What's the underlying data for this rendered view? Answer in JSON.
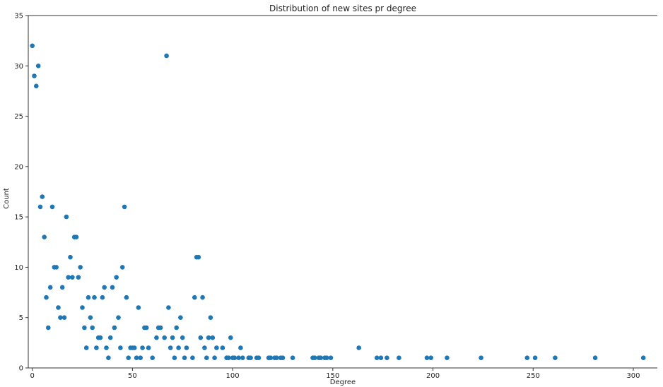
{
  "chart_data": {
    "type": "scatter",
    "title": "Distribution of new sites pr degree",
    "xlabel": "Degree",
    "ylabel": "Count",
    "xlim": [
      -2,
      312
    ],
    "ylim": [
      0,
      35
    ],
    "xticks": [
      0,
      50,
      100,
      150,
      200,
      250,
      300
    ],
    "yticks": [
      0,
      5,
      10,
      15,
      20,
      25,
      30,
      35
    ],
    "grid": false,
    "marker_color": "#1f77b4",
    "series": [
      {
        "points": [
          [
            0,
            32
          ],
          [
            1,
            29
          ],
          [
            2,
            28
          ],
          [
            3,
            30
          ],
          [
            4,
            16
          ],
          [
            5,
            17
          ],
          [
            6,
            13
          ],
          [
            7,
            7
          ],
          [
            8,
            4
          ],
          [
            9,
            8
          ],
          [
            10,
            16
          ],
          [
            11,
            10
          ],
          [
            12,
            10
          ],
          [
            13,
            6
          ],
          [
            14,
            5
          ],
          [
            15,
            8
          ],
          [
            16,
            5
          ],
          [
            17,
            15
          ],
          [
            18,
            9
          ],
          [
            19,
            11
          ],
          [
            20,
            9
          ],
          [
            21,
            13
          ],
          [
            22,
            13
          ],
          [
            23,
            9
          ],
          [
            24,
            10
          ],
          [
            25,
            6
          ],
          [
            26,
            4
          ],
          [
            27,
            2
          ],
          [
            28,
            7
          ],
          [
            29,
            5
          ],
          [
            30,
            4
          ],
          [
            31,
            7
          ],
          [
            32,
            2
          ],
          [
            33,
            3
          ],
          [
            34,
            3
          ],
          [
            35,
            7
          ],
          [
            36,
            8
          ],
          [
            37,
            2
          ],
          [
            38,
            1
          ],
          [
            39,
            3
          ],
          [
            40,
            8
          ],
          [
            41,
            4
          ],
          [
            42,
            9
          ],
          [
            43,
            5
          ],
          [
            44,
            2
          ],
          [
            45,
            10
          ],
          [
            46,
            16
          ],
          [
            47,
            7
          ],
          [
            48,
            1
          ],
          [
            49,
            2
          ],
          [
            50,
            2
          ],
          [
            51,
            2
          ],
          [
            52,
            1
          ],
          [
            53,
            6
          ],
          [
            54,
            1
          ],
          [
            55,
            2
          ],
          [
            56,
            4
          ],
          [
            57,
            4
          ],
          [
            58,
            2
          ],
          [
            60,
            1
          ],
          [
            62,
            3
          ],
          [
            63,
            4
          ],
          [
            64,
            4
          ],
          [
            66,
            3
          ],
          [
            67,
            31
          ],
          [
            68,
            6
          ],
          [
            69,
            2
          ],
          [
            70,
            3
          ],
          [
            71,
            1
          ],
          [
            72,
            4
          ],
          [
            73,
            2
          ],
          [
            74,
            5
          ],
          [
            75,
            3
          ],
          [
            76,
            1
          ],
          [
            77,
            2
          ],
          [
            80,
            1
          ],
          [
            81,
            7
          ],
          [
            82,
            11
          ],
          [
            83,
            11
          ],
          [
            84,
            3
          ],
          [
            85,
            7
          ],
          [
            86,
            2
          ],
          [
            87,
            1
          ],
          [
            88,
            3
          ],
          [
            89,
            5
          ],
          [
            90,
            3
          ],
          [
            91,
            1
          ],
          [
            92,
            2
          ],
          [
            95,
            2
          ],
          [
            97,
            1
          ],
          [
            98,
            1
          ],
          [
            99,
            3
          ],
          [
            100,
            1
          ],
          [
            101,
            1
          ],
          [
            103,
            1
          ],
          [
            104,
            2
          ],
          [
            105,
            1
          ],
          [
            108,
            1
          ],
          [
            109,
            1
          ],
          [
            112,
            1
          ],
          [
            113,
            1
          ],
          [
            118,
            1
          ],
          [
            119,
            1
          ],
          [
            121,
            1
          ],
          [
            122,
            1
          ],
          [
            124,
            1
          ],
          [
            125,
            1
          ],
          [
            130,
            1
          ],
          [
            140,
            1
          ],
          [
            141,
            1
          ],
          [
            143,
            1
          ],
          [
            144,
            1
          ],
          [
            146,
            1
          ],
          [
            147,
            1
          ],
          [
            149,
            1
          ],
          [
            163,
            2
          ],
          [
            172,
            1
          ],
          [
            174,
            1
          ],
          [
            177,
            1
          ],
          [
            183,
            1
          ],
          [
            197,
            1
          ],
          [
            199,
            1
          ],
          [
            207,
            1
          ],
          [
            224,
            1
          ],
          [
            247,
            1
          ],
          [
            251,
            1
          ],
          [
            261,
            1
          ],
          [
            281,
            1
          ],
          [
            305,
            1
          ]
        ]
      }
    ]
  }
}
